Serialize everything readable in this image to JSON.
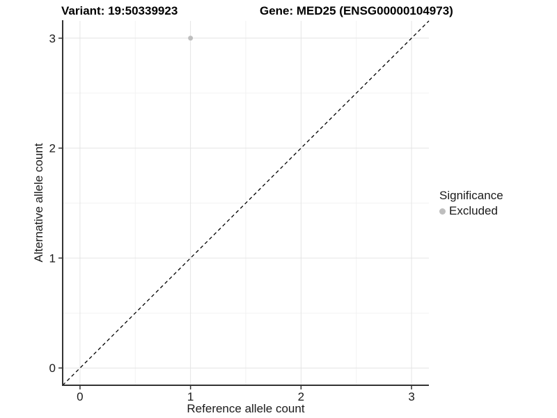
{
  "chart_data": {
    "type": "scatter",
    "title_left": "Variant: 19:50339923",
    "title_right": "Gene: MED25 (ENSG00000104973)",
    "xlabel": "Reference allele count",
    "ylabel": "Alternative allele count",
    "xlim": [
      -0.157,
      3.157
    ],
    "ylim": [
      -0.157,
      3.157
    ],
    "x_ticks": [
      0,
      1,
      2,
      3
    ],
    "x_tick_labels": [
      "0",
      "1",
      "2",
      "3"
    ],
    "y_ticks": [
      0,
      1,
      2,
      3
    ],
    "y_tick_labels": [
      "0",
      "1",
      "2",
      "3"
    ],
    "minor_gridlines": [
      0.5,
      1.5,
      2.5
    ],
    "grid": true,
    "identity_line": {
      "style": "dashed",
      "from": -0.157,
      "to": 3.157
    },
    "series": [
      {
        "name": "Excluded",
        "color": "#bebebe",
        "points": [
          {
            "x": 1,
            "y": 3
          }
        ]
      }
    ],
    "legend": {
      "title": "Significance",
      "position": "right",
      "items": [
        {
          "label": "Excluded",
          "color": "#bebebe"
        }
      ]
    }
  },
  "colors": {
    "background": "#ffffff",
    "grid_major": "#e4e4e4",
    "grid_minor": "#f2f2f2",
    "axis": "#333333",
    "text": "#1a1a1a",
    "title": "#000000",
    "identity_line": "#000000",
    "point": "#bebebe"
  }
}
